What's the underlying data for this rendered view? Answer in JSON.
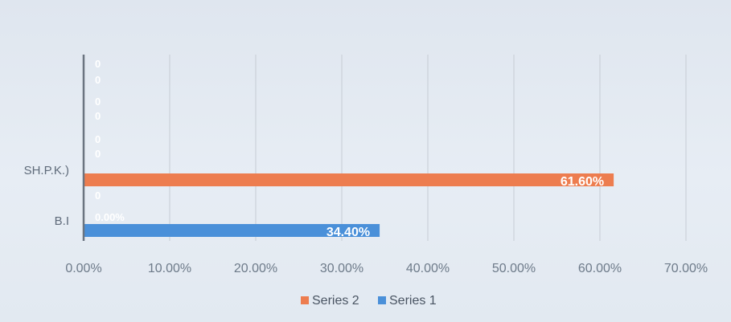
{
  "chart_data": {
    "type": "bar",
    "orientation": "horizontal",
    "categories": [
      "B.I",
      "SH.P.K.)"
    ],
    "series": [
      {
        "name": "Series 1",
        "values": [
          34.4,
          0
        ],
        "value_labels": [
          "34.40%",
          "0"
        ],
        "color": "#4a90d9"
      },
      {
        "name": "Series 2",
        "values": [
          0,
          61.6
        ],
        "value_labels": [
          "0.00%",
          "61.60%"
        ],
        "color": "#ed7d4f"
      }
    ],
    "extra_labels": [
      "0",
      "0",
      "0",
      "0",
      "0",
      "0"
    ],
    "xlim": [
      0,
      70
    ],
    "x_ticks": [
      "0.00%",
      "10.00%",
      "20.00%",
      "30.00%",
      "40.00%",
      "50.00%",
      "60.00%",
      "70.00%"
    ],
    "legend_position": "bottom",
    "legend_order": [
      "Series 2",
      "Series 1"
    ],
    "grid": "vertical"
  }
}
